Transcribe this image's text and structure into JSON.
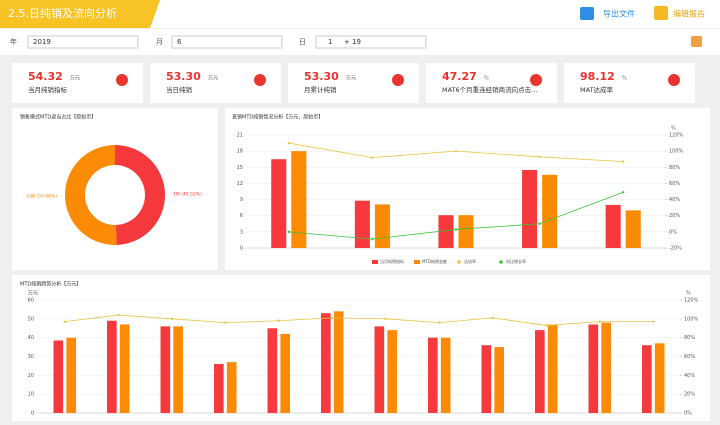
{
  "header": {
    "title": "2.5.日纯销及流向分析",
    "export": "导出文件",
    "edit": "编辑报告"
  },
  "filters": {
    "year_label": "年",
    "year": "2019",
    "month_label": "月",
    "month": "6",
    "day_label": "日",
    "day_from": "1",
    "day_to": "+ 19"
  },
  "kpis": [
    {
      "value": "54.32",
      "unit": "万元",
      "label": "当月纯销指标"
    },
    {
      "value": "53.30",
      "unit": "万元",
      "label": "当日纯销"
    },
    {
      "value": "53.30",
      "unit": "万元",
      "label": "月累计纯销"
    },
    {
      "value": "47.27",
      "unit": "%",
      "label": "MAT6个月重连经销商流向点击..."
    },
    {
      "value": "98.12",
      "unit": "%",
      "label": "MAT达成率"
    }
  ],
  "chart_data": [
    {
      "type": "pie",
      "donut": true,
      "title": "销售模式MTD返当占比【原始币】",
      "categories": [
        "1M",
        "分销"
      ],
      "values": [
        49.52,
        50.48
      ],
      "value_labels": [
        "1M (49.52%)",
        "分销 (50.48%)"
      ],
      "colors": [
        "#f5393c",
        "#fb8b05"
      ]
    },
    {
      "type": "bar-line",
      "title": "直销MTD纯销情况分析【万元，原始币】",
      "y2_label": "%",
      "categories": [
        null,
        null,
        null,
        null,
        null
      ],
      "ylim": [
        0,
        21
      ],
      "yticks": [
        0,
        3,
        6,
        9,
        12,
        15,
        18,
        21
      ],
      "y2lim": [
        -20,
        120
      ],
      "y2ticks": [
        {
          "value": -20,
          "label": "-20%"
        },
        {
          "value": 0,
          "label": "0%"
        },
        {
          "value": 20,
          "label": "20%"
        },
        {
          "value": 40,
          "label": "40%"
        },
        {
          "value": 60,
          "label": "60%"
        },
        {
          "value": 80,
          "label": "80%"
        },
        {
          "value": 100,
          "label": "100%"
        },
        {
          "value": 120,
          "label": "120%"
        }
      ],
      "legend": "bottom",
      "series": [
        {
          "name": "当月纯销指标",
          "kind": "bar",
          "color": "#f5393c",
          "values": [
            16.5,
            8.8,
            6.1,
            14.5,
            8.0
          ]
        },
        {
          "name": "MTD纯销金额",
          "kind": "bar",
          "color": "#fb8b05",
          "values": [
            18.0,
            8.1,
            6.1,
            13.6,
            7.0
          ]
        },
        {
          "name": "达成率",
          "kind": "line",
          "axis": "y2",
          "color": "#e8c547",
          "values": [
            110,
            92,
            100,
            93,
            87
          ]
        },
        {
          "name": "同比增长率",
          "kind": "line",
          "axis": "y2",
          "color": "#3cc13b",
          "values": [
            0,
            -9,
            3,
            10,
            49
          ]
        }
      ]
    },
    {
      "type": "bar-line",
      "title": "MTD纯销趋势分析【万元】",
      "y_label": "万元",
      "y2_label": "%",
      "categories": [
        null,
        null,
        null,
        null,
        null,
        null,
        null,
        null,
        null,
        null,
        null,
        null
      ],
      "ylim": [
        0,
        60
      ],
      "yticks": [
        0,
        10,
        20,
        30,
        40,
        50,
        60
      ],
      "y2lim": [
        0,
        120
      ],
      "y2ticks": [
        {
          "value": 0,
          "label": "0%"
        },
        {
          "value": 20,
          "label": "20%"
        },
        {
          "value": 40,
          "label": "40%"
        },
        {
          "value": 60,
          "label": "60%"
        },
        {
          "value": 80,
          "label": "80%"
        },
        {
          "value": 100,
          "label": "100%"
        },
        {
          "value": 120,
          "label": "120%"
        }
      ],
      "series": [
        {
          "kind": "bar",
          "color": "#f5393c",
          "values": [
            38.5,
            49,
            46,
            26,
            45,
            53,
            46,
            40,
            36,
            44,
            47,
            36
          ]
        },
        {
          "kind": "bar",
          "color": "#fb8b05",
          "values": [
            40,
            47,
            46,
            27,
            42,
            54,
            44,
            40,
            35,
            47,
            48,
            37
          ]
        },
        {
          "kind": "line",
          "axis": "y2",
          "color": "#e8c547",
          "values": [
            97,
            104,
            100,
            96,
            98,
            101,
            100,
            96,
            101,
            93,
            97,
            97
          ]
        }
      ]
    }
  ]
}
